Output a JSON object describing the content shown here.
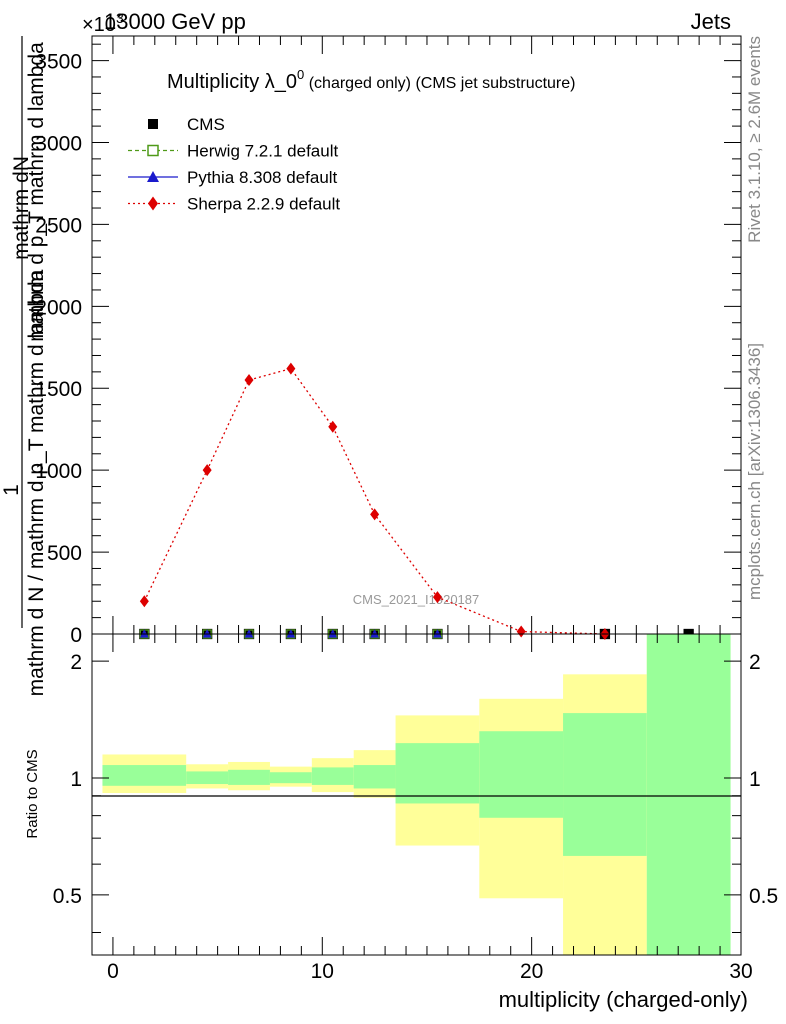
{
  "header": {
    "energy": "13000 GeV pp",
    "process": "Jets",
    "exponent": "×10",
    "exponent_power": "3"
  },
  "title": {
    "main": "Multiplicity λ_0",
    "sup": "0",
    "sub": " (charged only) (CMS jet substructure)"
  },
  "side_labels": {
    "rivet": "Rivet 3.1.10, ≥ 2.6M events",
    "mcplots": "mcplots.cern.ch [arXiv:1306.3436]"
  },
  "watermark": "CMS_2021_I1920187",
  "axes": {
    "ylabel_top_line1": "mathrm dN",
    "ylabel_top_line2": "mathrm d p_T mathrm d lambda",
    "ylabel_prefix": "1",
    "ylabel_denominator": "mathrm d N / mathrm d p_T mathrm d lambda",
    "ratio_ylabel": "Ratio to CMS",
    "xlabel": "multiplicity (charged-only)",
    "main_yticks": [
      "0",
      "500",
      "1000",
      "1500",
      "2000",
      "2500",
      "3000",
      "3500"
    ],
    "ratio_yticks": [
      "0.5",
      "1",
      "2"
    ],
    "xticks": [
      "0",
      "10",
      "20",
      "30"
    ]
  },
  "legend": [
    {
      "label": "CMS",
      "color": "#000000",
      "marker": "square-filled"
    },
    {
      "label": "Herwig 7.2.1 default",
      "color": "#4f9a18",
      "marker": "square-open",
      "line": "dashed"
    },
    {
      "label": "Pythia 8.308 default",
      "color": "#1a1acc",
      "marker": "triangle",
      "line": "solid"
    },
    {
      "label": "Sherpa 2.2.9 default",
      "color": "#dd0000",
      "marker": "diamond",
      "line": "dotted"
    }
  ],
  "chart_data": [
    {
      "type": "line",
      "panel": "main",
      "xlim": [
        -1,
        30
      ],
      "ylim": [
        0,
        3650
      ],
      "y_scale_factor": 1000,
      "series": [
        {
          "name": "Sherpa 2.2.9 default",
          "x": [
            1.5,
            4.5,
            6.5,
            8.5,
            10.5,
            12.5,
            15.5,
            19.5,
            23.5
          ],
          "y": [
            200,
            1000,
            1550,
            1620,
            1265,
            730,
            225,
            15,
            0
          ]
        },
        {
          "name": "CMS",
          "x": [
            1.5,
            4.5,
            6.5,
            8.5,
            10.5,
            12.5,
            15.5,
            23.5,
            27.5
          ],
          "y": [
            0,
            0,
            0,
            0,
            0,
            0,
            0,
            0,
            0
          ]
        },
        {
          "name": "Herwig 7.2.1 default",
          "x": [
            1.5,
            4.5,
            6.5,
            8.5,
            10.5,
            12.5,
            15.5
          ],
          "y": [
            0,
            0,
            0,
            0,
            0,
            0,
            0
          ]
        },
        {
          "name": "Pythia 8.308 default",
          "x": [
            1.5,
            4.5,
            6.5,
            8.5,
            10.5,
            12.5,
            15.5
          ],
          "y": [
            0,
            0,
            0,
            0,
            0,
            0,
            0
          ]
        }
      ]
    },
    {
      "type": "area",
      "panel": "ratio",
      "xlim": [
        -1,
        30
      ],
      "ylim": [
        0.35,
        2.35
      ],
      "y_scale": "log",
      "reference_line": 1,
      "bands": [
        {
          "x0": -0.5,
          "x1": 3.5,
          "yellow": [
            0.915,
            1.15
          ],
          "green": [
            0.955,
            1.08
          ]
        },
        {
          "x0": 3.5,
          "x1": 5.5,
          "yellow": [
            0.94,
            1.085
          ],
          "green": [
            0.965,
            1.04
          ]
        },
        {
          "x0": 5.5,
          "x1": 7.5,
          "yellow": [
            0.93,
            1.1
          ],
          "green": [
            0.96,
            1.05
          ]
        },
        {
          "x0": 7.5,
          "x1": 9.5,
          "yellow": [
            0.95,
            1.07
          ],
          "green": [
            0.97,
            1.035
          ]
        },
        {
          "x0": 9.5,
          "x1": 11.5,
          "yellow": [
            0.92,
            1.125
          ],
          "green": [
            0.96,
            1.065
          ]
        },
        {
          "x0": 11.5,
          "x1": 13.5,
          "yellow": [
            0.89,
            1.18
          ],
          "green": [
            0.94,
            1.08
          ]
        },
        {
          "x0": 13.5,
          "x1": 17.5,
          "yellow": [
            0.67,
            1.45
          ],
          "green": [
            0.86,
            1.23
          ]
        },
        {
          "x0": 17.5,
          "x1": 21.5,
          "yellow": [
            0.49,
            1.6
          ],
          "green": [
            0.79,
            1.32
          ]
        },
        {
          "x0": 21.5,
          "x1": 25.5,
          "yellow": [
            0.35,
            1.85
          ],
          "green": [
            0.63,
            1.47
          ]
        },
        {
          "x0": 25.5,
          "x1": 29.5,
          "yellow": [
            0.35,
            2.35
          ],
          "green": [
            0.35,
            2.35
          ]
        }
      ]
    }
  ]
}
